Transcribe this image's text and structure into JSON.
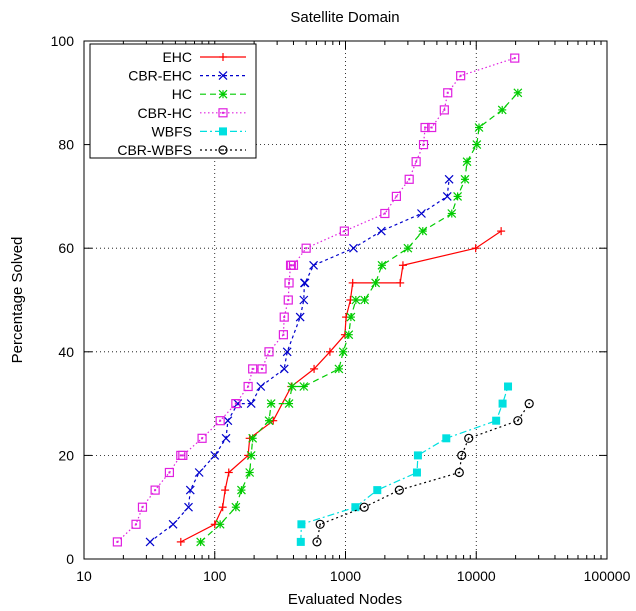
{
  "chart_data": {
    "type": "line",
    "title": "Satellite Domain",
    "xlabel": "Evaluated Nodes",
    "ylabel": "Percentage Solved",
    "xscale": "log",
    "xlim": [
      10,
      100000
    ],
    "ylim": [
      0,
      100
    ],
    "xticks": [
      10,
      100,
      1000,
      10000,
      100000
    ],
    "xtick_labels": [
      "10",
      "100",
      "1000",
      "10000",
      "100000"
    ],
    "yticks": [
      0,
      20,
      40,
      60,
      80,
      100
    ],
    "ytick_labels": [
      "0",
      "20",
      "40",
      "60",
      "80",
      "100"
    ],
    "grid": true,
    "legend_position": "top-left",
    "series": [
      {
        "name": "EHC",
        "color": "#ff0000",
        "dash": "solid",
        "marker": "plus",
        "x": [
          55,
          100,
          115,
          120,
          128,
          180,
          185,
          280,
          385,
          575,
          760,
          990,
          1010,
          1090,
          1135,
          2620,
          2750,
          9900,
          15500
        ],
        "y": [
          3.3,
          6.7,
          10,
          13.3,
          16.7,
          20,
          23.3,
          26.7,
          33.3,
          36.7,
          40,
          43.3,
          46.7,
          50,
          53.3,
          53.3,
          56.7,
          60,
          63.3
        ]
      },
      {
        "name": "CBR-EHC",
        "color": "#0000cc",
        "dash": "3,3",
        "marker": "x",
        "x": [
          32,
          48,
          63,
          65,
          76,
          100,
          122,
          126,
          150,
          190,
          225,
          340,
          358,
          450,
          480,
          485,
          490,
          570,
          1150,
          1880,
          3810,
          6000,
          6200
        ],
        "y": [
          3.3,
          6.7,
          10,
          13.3,
          16.7,
          20,
          23.3,
          26.7,
          30,
          30,
          33.3,
          36.7,
          40,
          46.7,
          50,
          53.3,
          53.3,
          56.7,
          60,
          63.3,
          66.7,
          70,
          73.3
        ]
      },
      {
        "name": "HC",
        "color": "#00cc00",
        "dash": "6,4",
        "marker": "star",
        "x": [
          78,
          110,
          145,
          160,
          185,
          190,
          195,
          260,
          270,
          370,
          390,
          480,
          890,
          960,
          1060,
          1100,
          1200,
          1400,
          1700,
          1900,
          3000,
          3900,
          6500,
          7200,
          8200,
          8500,
          10100,
          10500,
          15800,
          20800
        ],
        "y": [
          3.3,
          6.7,
          10,
          13.3,
          16.7,
          20,
          23.3,
          26.7,
          30,
          30,
          33.3,
          33.3,
          36.7,
          40,
          43.3,
          46.7,
          50,
          50,
          53.3,
          56.7,
          60,
          63.3,
          66.7,
          70,
          73.3,
          76.7,
          80,
          83.3,
          86.7,
          90
        ]
      },
      {
        "name": "CBR-HC",
        "color": "#e020e0",
        "dash": "1.5,2.5",
        "marker": "dotsquare",
        "x": [
          18,
          25,
          28,
          35,
          45,
          55,
          57,
          80,
          110,
          145,
          180,
          195,
          230,
          260,
          335,
          340,
          365,
          370,
          380,
          385,
          400,
          500,
          980,
          2000,
          2450,
          3070,
          3470,
          3950,
          4060,
          4560,
          5700,
          6050,
          7600,
          19700
        ],
        "y": [
          3.3,
          6.7,
          10,
          13.3,
          16.7,
          20,
          20,
          23.3,
          26.7,
          30,
          33.3,
          36.7,
          36.7,
          40,
          43.3,
          46.7,
          50,
          53.3,
          56.7,
          56.7,
          56.7,
          60,
          63.3,
          66.7,
          70,
          73.3,
          76.7,
          80,
          83.3,
          83.3,
          86.7,
          90,
          93.3,
          96.7
        ]
      },
      {
        "name": "WBFS",
        "color": "#00e0e0",
        "dash": "7,3,2,3",
        "marker": "filledsquare",
        "x": [
          455,
          460,
          1190,
          1750,
          3520,
          3580,
          5900,
          14200,
          15900,
          17500
        ],
        "y": [
          3.3,
          6.7,
          10,
          13.3,
          16.7,
          20,
          23.3,
          26.7,
          30,
          33.3
        ]
      },
      {
        "name": "CBR-WBFS",
        "color": "#000000",
        "dash": "2,3",
        "marker": "circle",
        "x": [
          605,
          640,
          1390,
          2580,
          7420,
          7740,
          8760,
          20800,
          25400
        ],
        "y": [
          3.3,
          6.7,
          10,
          13.3,
          16.7,
          20,
          23.3,
          26.7,
          30
        ]
      }
    ]
  }
}
